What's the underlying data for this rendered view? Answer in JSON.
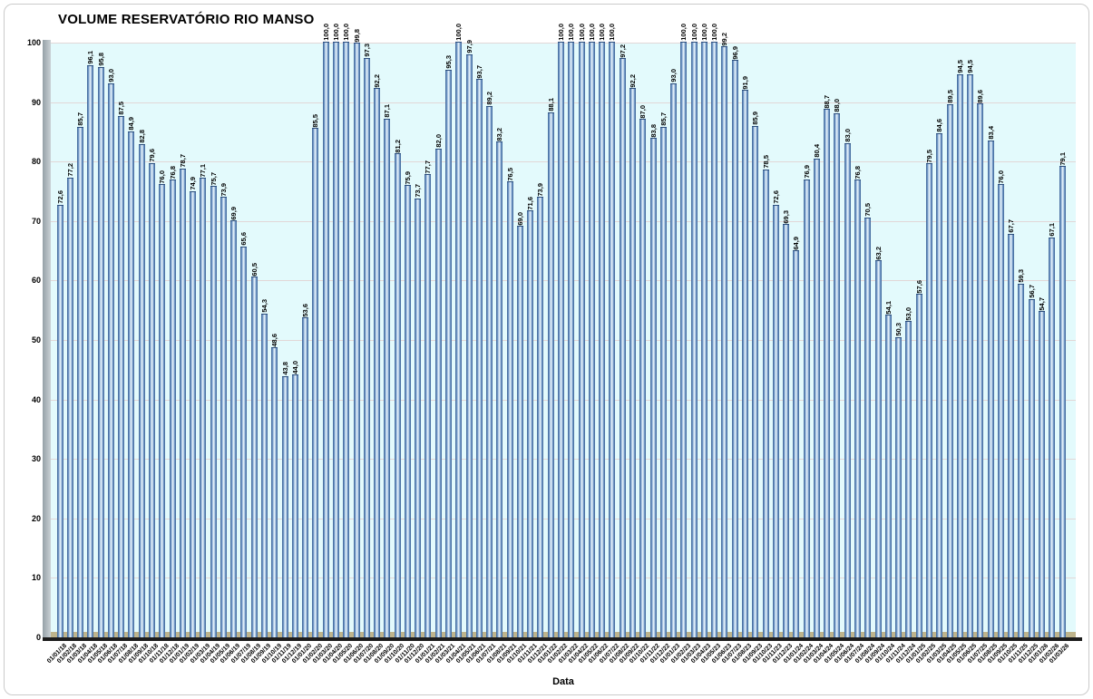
{
  "chart_data": {
    "type": "bar",
    "title": "VOLUME RESERVATÓRIO RIO MANSO",
    "xlabel": "Data",
    "ylabel": "",
    "ylim": [
      0,
      100
    ],
    "yticks": [
      0,
      10,
      20,
      30,
      40,
      50,
      60,
      70,
      80,
      90,
      100
    ],
    "grid": true,
    "legend": "none",
    "value_labels": "rotated-90-above-bars, decimal comma",
    "categories": [
      "01/01/18",
      "01/02/18",
      "01/03/18",
      "01/04/18",
      "01/05/18",
      "01/06/18",
      "01/07/18",
      "01/08/18",
      "01/09/18",
      "01/10/18",
      "01/11/18",
      "01/12/18",
      "01/01/19",
      "01/02/19",
      "01/03/19",
      "01/04/19",
      "01/05/19",
      "01/06/19",
      "01/07/19",
      "01/08/19",
      "01/09/19",
      "01/10/19",
      "01/11/19",
      "01/12/19",
      "01/01/20",
      "01/02/20",
      "01/03/20",
      "01/04/20",
      "01/05/20",
      "01/06/20",
      "01/07/20",
      "01/08/20",
      "01/09/20",
      "01/10/20",
      "01/11/20",
      "01/12/20",
      "01/01/21",
      "01/02/21",
      "01/03/21",
      "01/04/21",
      "01/05/21",
      "01/06/21",
      "01/07/21",
      "01/08/21",
      "01/09/21",
      "01/10/21",
      "01/11/21",
      "01/12/21",
      "01/01/22",
      "01/02/22",
      "01/03/22",
      "01/04/22",
      "01/05/22",
      "01/06/22",
      "01/07/22",
      "01/08/22",
      "01/09/22",
      "01/10/22",
      "01/11/22",
      "01/12/22",
      "01/01/23",
      "01/02/23",
      "01/03/23",
      "01/04/23",
      "01/05/23",
      "01/06/23",
      "01/07/23",
      "01/08/23",
      "01/09/23",
      "01/10/23",
      "01/11/23",
      "01/12/23",
      "01/01/24",
      "01/02/24",
      "01/03/24",
      "01/04/24",
      "01/05/24",
      "01/06/24",
      "01/07/24",
      "01/08/24",
      "01/09/24",
      "01/10/24",
      "01/11/24",
      "01/12/24",
      "01/01/25",
      "01/02/25",
      "01/03/25",
      "01/04/25",
      "01/05/25",
      "01/06/25",
      "01/07/25",
      "01/08/25",
      "01/09/25",
      "01/10/25",
      "01/11/25",
      "01/12/25",
      "01/01/26",
      "01/02/26",
      "01/03/26"
    ],
    "values": [
      72.6,
      77.2,
      85.7,
      96.1,
      95.8,
      93.0,
      87.5,
      84.9,
      82.8,
      79.6,
      76.0,
      76.8,
      78.7,
      74.9,
      77.1,
      75.7,
      73.9,
      69.9,
      65.6,
      60.5,
      54.3,
      48.6,
      43.8,
      44.0,
      53.6,
      85.5,
      100.0,
      100.0,
      100.0,
      99.8,
      97.3,
      92.2,
      87.1,
      81.2,
      75.9,
      73.7,
      77.7,
      82.0,
      95.3,
      100.0,
      97.9,
      93.7,
      89.2,
      83.2,
      76.5,
      69.0,
      71.6,
      73.9,
      88.1,
      100.0,
      100.0,
      100.0,
      100.0,
      100.0,
      100.0,
      97.2,
      92.2,
      87.0,
      83.8,
      85.7,
      93.0,
      100.0,
      100.0,
      100.0,
      100.0,
      99.2,
      96.9,
      91.9,
      85.9,
      78.5,
      72.6,
      69.3,
      64.9,
      76.9,
      80.4,
      88.7,
      88.0,
      83.0,
      76.8,
      70.5,
      63.2,
      54.1,
      50.3,
      53.0,
      57.6,
      79.5,
      84.6,
      89.5,
      94.5,
      94.5,
      89.6,
      83.4,
      76.0,
      67.7,
      59.3,
      56.7,
      54.7,
      67.1,
      79.1
    ],
    "colors": {
      "bar_dark": "#3b6195",
      "bar_mid": "#6c94c4",
      "bar_light": "#dfedf8",
      "plot_bg": "#e3fafc",
      "gridline": "#e2d7d7",
      "wall_gray": "#a7b1b6",
      "floor_tan": "#beb48c",
      "floor_dark": "#1c1c1c",
      "text": "#000000"
    }
  }
}
